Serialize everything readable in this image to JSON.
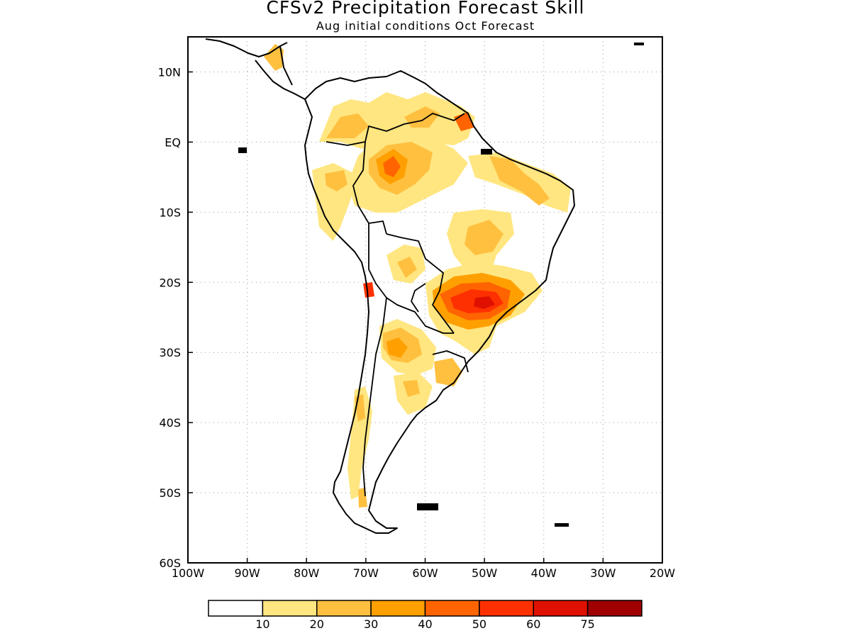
{
  "header": {
    "title": "CFSv2 Precipitation Forecast Skill",
    "subtitle": "Aug initial conditions  Oct Forecast"
  },
  "map": {
    "lon_range": [
      -100,
      -20
    ],
    "lat_range": [
      -60,
      15
    ],
    "x_ticks": [
      {
        "lon": -100,
        "label": "100W"
      },
      {
        "lon": -90,
        "label": "90W"
      },
      {
        "lon": -80,
        "label": "80W"
      },
      {
        "lon": -70,
        "label": "70W"
      },
      {
        "lon": -60,
        "label": "60W"
      },
      {
        "lon": -50,
        "label": "50W"
      },
      {
        "lon": -40,
        "label": "40W"
      },
      {
        "lon": -30,
        "label": "30W"
      },
      {
        "lon": -20,
        "label": "20W"
      }
    ],
    "y_ticks": [
      {
        "lat": 10,
        "label": "10N"
      },
      {
        "lat": 0,
        "label": "EQ"
      },
      {
        "lat": -10,
        "label": "10S"
      },
      {
        "lat": -20,
        "label": "20S"
      },
      {
        "lat": -30,
        "label": "30S"
      },
      {
        "lat": -40,
        "label": "40S"
      },
      {
        "lat": -50,
        "label": "50S"
      },
      {
        "lat": -60,
        "label": "60S"
      }
    ],
    "grid": "dotted"
  },
  "colorbar": {
    "levels": [
      "10",
      "20",
      "30",
      "40",
      "50",
      "60",
      "75"
    ],
    "colors": [
      "#ffffff",
      "#ffe680",
      "#ffc040",
      "#ffa000",
      "#ff6400",
      "#ff3000",
      "#e01000",
      "#a00000"
    ]
  }
}
